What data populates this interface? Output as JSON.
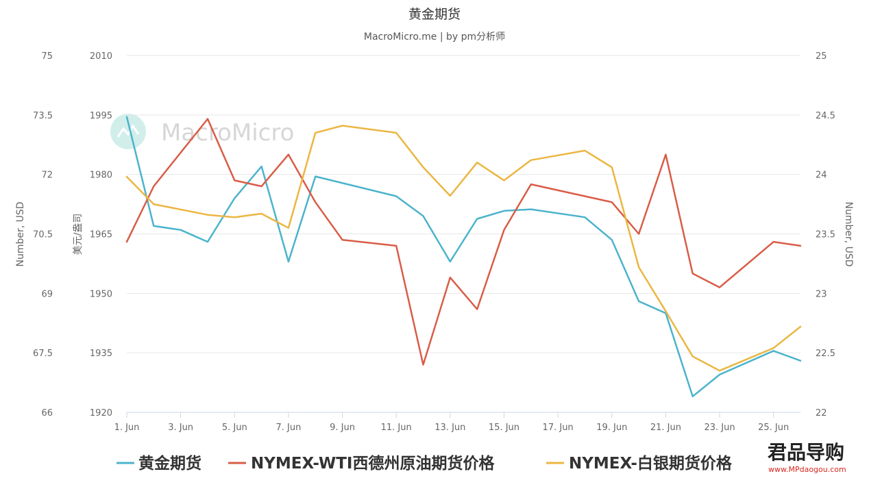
{
  "chart_data": {
    "type": "line",
    "title": "黄金期货",
    "subtitle": "MacroMicro.me | by pm分析师",
    "left_axis_2_title": "Number, USD",
    "left_axis_1_title": "美元/盎司",
    "right_axis_title": "Number, USD",
    "x": [
      1,
      2,
      3,
      4,
      5,
      6,
      7,
      8,
      9,
      10,
      11,
      12,
      13,
      14,
      15,
      16,
      17,
      18,
      19,
      20,
      21,
      22,
      23,
      24,
      25,
      26
    ],
    "x_tick_labels": [
      "1. Jun",
      "3. Jun",
      "5. Jun",
      "7. Jun",
      "9. Jun",
      "11. Jun",
      "13. Jun",
      "15. Jun",
      "17. Jun",
      "19. Jun",
      "21. Jun",
      "23. Jun",
      "25. Jun"
    ],
    "x_tick_days": [
      1,
      3,
      5,
      7,
      9,
      11,
      13,
      15,
      17,
      19,
      21,
      23,
      25
    ],
    "xlim": [
      1,
      26
    ],
    "axes": {
      "gold_axis": {
        "ticks": [
          "1920",
          "1935",
          "1950",
          "1965",
          "1980",
          "1995",
          "2010"
        ],
        "ylim": [
          1920,
          2010
        ]
      },
      "wti_axis": {
        "ticks": [
          "66",
          "67.5",
          "69",
          "70.5",
          "72",
          "73.5",
          "75"
        ],
        "ylim": [
          66,
          75
        ]
      },
      "silver_axis": {
        "ticks": [
          "22",
          "22.5",
          "23",
          "23.5",
          "24",
          "24.5",
          "25"
        ],
        "ylim": [
          22,
          25
        ]
      }
    },
    "series": [
      {
        "name": "黄金期货",
        "axis": "gold_axis",
        "color": "#4bb3cc",
        "values": [
          1994.5,
          1967,
          1966,
          1963,
          1974,
          1982,
          1958,
          1979.5,
          null,
          null,
          1974.5,
          1969.5,
          1958,
          1968.8,
          1970.8,
          1971.2,
          null,
          1969.2,
          1963.5,
          1948,
          1945,
          1924,
          1929.5,
          null,
          1935.5,
          1933
        ]
      },
      {
        "name": "NYMEX-WTI西德州原油期货价格",
        "axis": "wti_axis",
        "color": "#d95c46",
        "values": [
          70.3,
          71.7,
          null,
          73.4,
          71.85,
          71.7,
          72.5,
          71.3,
          70.35,
          null,
          70.2,
          67.2,
          69.4,
          68.6,
          70.6,
          71.75,
          null,
          71.45,
          71.3,
          70.5,
          72.5,
          69.5,
          69.15,
          null,
          70.3,
          70.2
        ]
      },
      {
        "name": "NYMEX-白银期货价格",
        "axis": "silver_axis",
        "color": "#ebb642",
        "values": [
          23.98,
          23.75,
          null,
          23.66,
          23.64,
          23.67,
          23.55,
          24.35,
          24.41,
          null,
          24.35,
          24.06,
          23.82,
          24.1,
          23.95,
          24.12,
          null,
          24.2,
          24.06,
          23.22,
          22.85,
          22.47,
          22.35,
          null,
          22.54,
          22.72
        ]
      }
    ],
    "legend_position": "bottom",
    "grid": true
  },
  "watermarks": {
    "macromicro": "MacroMicro",
    "brand_main": "君品导购",
    "brand_url": "www.MPdaogou.com"
  }
}
